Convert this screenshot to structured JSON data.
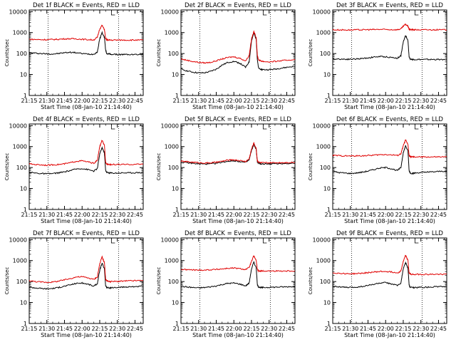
{
  "colors": {
    "events": "#000000",
    "lld": "#e00000",
    "axis": "#000000",
    "background": "#ffffff"
  },
  "chart_data": [
    {
      "type": "line",
      "title": "Det 1f BLACK = Events, RED = LLD",
      "xlabel": "Start Time (08-Jan-10 21:14:40)",
      "ylabel": "Counts/sec",
      "x_ticks": [
        "21:15",
        "21:30",
        "21:45",
        "22:00",
        "22:15",
        "22:30",
        "22:45"
      ],
      "y_ticks": [
        "1",
        "10",
        "100",
        "1000",
        "10000"
      ],
      "yscale": "log",
      "ylim": [
        1,
        12000
      ],
      "xlim": [
        "21:15",
        "22:52"
      ],
      "dotted_vlines": [
        "21:31",
        "22:31"
      ],
      "x": [
        "21:15",
        "21:20",
        "21:25",
        "21:30",
        "21:35",
        "21:40",
        "21:45",
        "21:50",
        "21:55",
        "22:00",
        "22:05",
        "22:10",
        "22:13",
        "22:15",
        "22:17",
        "22:19",
        "22:20",
        "22:21",
        "22:23",
        "22:25",
        "22:30",
        "22:35",
        "22:40",
        "22:45",
        "22:52"
      ],
      "series": [
        {
          "name": "Events",
          "values": [
            110,
            105,
            100,
            97,
            95,
            100,
            110,
            115,
            110,
            100,
            95,
            93,
            120,
            500,
            1000,
            600,
            150,
            100,
            95,
            92,
            90,
            90,
            90,
            90,
            90
          ]
        },
        {
          "name": "LLD",
          "values": [
            480,
            470,
            460,
            460,
            470,
            480,
            500,
            510,
            500,
            480,
            460,
            450,
            600,
            1500,
            2200,
            1400,
            520,
            450,
            440,
            440,
            440,
            440,
            440,
            440,
            440
          ]
        }
      ]
    },
    {
      "type": "line",
      "title": "Det 2f BLACK = Events, RED = LLD",
      "xlabel": "Start Time (08-Jan-10 21:14:40)",
      "ylabel": "Counts/sec",
      "x_ticks": [
        "21:15",
        "21:30",
        "21:45",
        "22:00",
        "22:15",
        "22:30",
        "22:45"
      ],
      "y_ticks": [
        "1",
        "10",
        "100",
        "1000",
        "10000"
      ],
      "yscale": "log",
      "ylim": [
        1,
        12000
      ],
      "xlim": [
        "21:15",
        "22:52"
      ],
      "dotted_vlines": [
        "21:31",
        "22:31"
      ],
      "x": [
        "21:15",
        "21:20",
        "21:25",
        "21:30",
        "21:35",
        "21:40",
        "21:45",
        "21:50",
        "21:55",
        "22:00",
        "22:05",
        "22:10",
        "22:13",
        "22:15",
        "22:17",
        "22:19",
        "22:20",
        "22:21",
        "22:23",
        "22:25",
        "22:30",
        "22:35",
        "22:40",
        "22:45",
        "22:52"
      ],
      "series": [
        {
          "name": "Events",
          "values": [
            18,
            15,
            13,
            12,
            12,
            14,
            18,
            28,
            38,
            42,
            35,
            22,
            40,
            400,
            950,
            500,
            50,
            20,
            18,
            17,
            17,
            18,
            20,
            22,
            25
          ]
        },
        {
          "name": "LLD",
          "values": [
            55,
            48,
            42,
            38,
            36,
            38,
            45,
            55,
            65,
            70,
            60,
            45,
            80,
            500,
            1100,
            600,
            80,
            50,
            45,
            42,
            40,
            42,
            45,
            48,
            52
          ]
        }
      ]
    },
    {
      "type": "line",
      "title": "Det 3f BLACK = Events, RED = LLD",
      "xlabel": "Start Time (08-Jan-10 21:14:40)",
      "ylabel": "Counts/sec",
      "x_ticks": [
        "21:15",
        "21:30",
        "21:45",
        "22:00",
        "22:15",
        "22:30",
        "22:45"
      ],
      "y_ticks": [
        "1",
        "10",
        "100",
        "1000",
        "10000"
      ],
      "yscale": "log",
      "ylim": [
        1,
        12000
      ],
      "xlim": [
        "21:15",
        "22:52"
      ],
      "dotted_vlines": [
        "21:31",
        "22:31"
      ],
      "x": [
        "21:15",
        "21:20",
        "21:25",
        "21:30",
        "21:35",
        "21:40",
        "21:45",
        "21:50",
        "21:55",
        "22:00",
        "22:05",
        "22:10",
        "22:13",
        "22:15",
        "22:17",
        "22:19",
        "22:20",
        "22:21",
        "22:23",
        "22:25",
        "22:30",
        "22:35",
        "22:40",
        "22:45",
        "22:52"
      ],
      "series": [
        {
          "name": "Events",
          "values": [
            55,
            55,
            54,
            54,
            55,
            58,
            62,
            68,
            72,
            70,
            65,
            60,
            80,
            350,
            750,
            400,
            70,
            55,
            52,
            52,
            52,
            52,
            52,
            52,
            52
          ]
        },
        {
          "name": "LLD",
          "values": [
            1350,
            1350,
            1340,
            1340,
            1350,
            1360,
            1380,
            1400,
            1420,
            1400,
            1380,
            1370,
            1500,
            2000,
            2500,
            2000,
            1450,
            1380,
            1370,
            1360,
            1360,
            1360,
            1360,
            1360,
            1360
          ]
        }
      ]
    },
    {
      "type": "line",
      "title": "Det 4f BLACK = Events, RED = LLD",
      "xlabel": "Start Time (08-Jan-10 21:14:40)",
      "ylabel": "Counts/sec",
      "x_ticks": [
        "21:15",
        "21:30",
        "21:45",
        "22:00",
        "22:15",
        "22:30",
        "22:45"
      ],
      "y_ticks": [
        "1",
        "10",
        "100",
        "1000",
        "10000"
      ],
      "yscale": "log",
      "ylim": [
        1,
        12000
      ],
      "xlim": [
        "21:15",
        "22:52"
      ],
      "dotted_vlines": [
        "21:31",
        "22:31"
      ],
      "x": [
        "21:15",
        "21:20",
        "21:25",
        "21:30",
        "21:35",
        "21:40",
        "21:45",
        "21:50",
        "21:55",
        "22:00",
        "22:05",
        "22:10",
        "22:13",
        "22:15",
        "22:17",
        "22:19",
        "22:20",
        "22:21",
        "22:23",
        "22:25",
        "22:30",
        "22:35",
        "22:40",
        "22:45",
        "22:52"
      ],
      "series": [
        {
          "name": "Events",
          "values": [
            60,
            55,
            52,
            50,
            52,
            56,
            62,
            72,
            85,
            90,
            80,
            68,
            90,
            450,
            900,
            500,
            75,
            60,
            55,
            55,
            55,
            56,
            56,
            57,
            58
          ]
        },
        {
          "name": "LLD",
          "values": [
            150,
            140,
            135,
            130,
            135,
            140,
            150,
            170,
            200,
            210,
            185,
            160,
            220,
            1000,
            2000,
            1100,
            180,
            150,
            140,
            140,
            140,
            140,
            140,
            142,
            145
          ]
        }
      ]
    },
    {
      "type": "line",
      "title": "Det 5f BLACK = Events, RED = LLD",
      "xlabel": "Start Time (08-Jan-10 21:14:40)",
      "ylabel": "Counts/sec",
      "x_ticks": [
        "21:15",
        "21:30",
        "21:45",
        "22:00",
        "22:15",
        "22:30",
        "22:45"
      ],
      "y_ticks": [
        "1",
        "10",
        "100",
        "1000",
        "10000"
      ],
      "yscale": "log",
      "ylim": [
        1,
        12000
      ],
      "xlim": [
        "21:15",
        "22:52"
      ],
      "dotted_vlines": [
        "21:31",
        "22:31"
      ],
      "x": [
        "21:15",
        "21:20",
        "21:25",
        "21:30",
        "21:35",
        "21:40",
        "21:45",
        "21:50",
        "21:55",
        "22:00",
        "22:05",
        "22:10",
        "22:13",
        "22:15",
        "22:17",
        "22:19",
        "22:20",
        "22:21",
        "22:23",
        "22:25",
        "22:30",
        "22:35",
        "22:40",
        "22:45",
        "22:52"
      ],
      "series": [
        {
          "name": "Events",
          "values": [
            180,
            170,
            160,
            150,
            148,
            150,
            160,
            180,
            200,
            210,
            195,
            175,
            230,
            650,
            1300,
            700,
            190,
            160,
            150,
            150,
            150,
            152,
            155,
            158,
            160
          ]
        },
        {
          "name": "LLD",
          "values": [
            200,
            190,
            180,
            170,
            165,
            168,
            178,
            200,
            225,
            235,
            215,
            195,
            260,
            750,
            1500,
            800,
            210,
            180,
            170,
            168,
            168,
            170,
            172,
            175,
            178
          ]
        }
      ]
    },
    {
      "type": "line",
      "title": "Det 6f BLACK = Events, RED = LLD",
      "xlabel": "Start Time (08-Jan-10 21:14:40)",
      "ylabel": "Counts/sec",
      "x_ticks": [
        "21:15",
        "21:30",
        "21:45",
        "22:00",
        "22:15",
        "22:30",
        "22:45"
      ],
      "y_ticks": [
        "1",
        "10",
        "100",
        "1000",
        "10000"
      ],
      "yscale": "log",
      "ylim": [
        1,
        12000
      ],
      "xlim": [
        "21:15",
        "22:52"
      ],
      "dotted_vlines": [
        "21:31",
        "22:31"
      ],
      "x": [
        "21:15",
        "21:20",
        "21:25",
        "21:30",
        "21:35",
        "21:40",
        "21:45",
        "21:50",
        "21:55",
        "22:00",
        "22:05",
        "22:10",
        "22:13",
        "22:15",
        "22:17",
        "22:19",
        "22:20",
        "22:21",
        "22:23",
        "22:25",
        "22:30",
        "22:35",
        "22:40",
        "22:45",
        "22:52"
      ],
      "series": [
        {
          "name": "Events",
          "values": [
            65,
            58,
            55,
            52,
            55,
            60,
            68,
            80,
            95,
            100,
            88,
            72,
            100,
            500,
            1100,
            600,
            70,
            55,
            52,
            55,
            58,
            60,
            62,
            65,
            68
          ]
        },
        {
          "name": "LLD",
          "values": [
            380,
            370,
            360,
            355,
            360,
            365,
            375,
            390,
            410,
            420,
            400,
            380,
            450,
            1100,
            2100,
            1200,
            380,
            330,
            320,
            320,
            320,
            320,
            320,
            320,
            320
          ]
        }
      ]
    },
    {
      "type": "line",
      "title": "Det 7f BLACK = Events, RED = LLD",
      "xlabel": "Start Time (08-Jan-10 21:14:40)",
      "ylabel": "Counts/sec",
      "x_ticks": [
        "21:15",
        "21:30",
        "21:45",
        "22:00",
        "22:15",
        "22:30",
        "22:45"
      ],
      "y_ticks": [
        "1",
        "10",
        "100",
        "1000",
        "10000"
      ],
      "yscale": "log",
      "ylim": [
        1,
        12000
      ],
      "xlim": [
        "21:15",
        "22:52"
      ],
      "dotted_vlines": [
        "21:31",
        "22:31"
      ],
      "x": [
        "21:15",
        "21:20",
        "21:25",
        "21:30",
        "21:35",
        "21:40",
        "21:45",
        "21:50",
        "21:55",
        "22:00",
        "22:05",
        "22:10",
        "22:13",
        "22:15",
        "22:17",
        "22:19",
        "22:20",
        "22:21",
        "22:23",
        "22:25",
        "22:30",
        "22:35",
        "22:40",
        "22:45",
        "22:52"
      ],
      "series": [
        {
          "name": "Events",
          "values": [
            55,
            50,
            47,
            45,
            47,
            52,
            60,
            70,
            82,
            85,
            75,
            60,
            80,
            350,
            750,
            400,
            65,
            52,
            50,
            50,
            52,
            54,
            56,
            58,
            60
          ]
        },
        {
          "name": "LLD",
          "values": [
            110,
            100,
            95,
            92,
            95,
            105,
            120,
            140,
            165,
            170,
            150,
            125,
            170,
            700,
            1500,
            800,
            130,
            110,
            100,
            100,
            102,
            105,
            108,
            110,
            112
          ]
        }
      ]
    },
    {
      "type": "line",
      "title": "Det 8f BLACK = Events, RED = LLD",
      "xlabel": "Start Time (08-Jan-10 21:14:40)",
      "ylabel": "Counts/sec",
      "x_ticks": [
        "21:15",
        "21:30",
        "21:45",
        "22:00",
        "22:15",
        "22:30",
        "22:45"
      ],
      "y_ticks": [
        "1",
        "10",
        "100",
        "1000",
        "10000"
      ],
      "yscale": "log",
      "ylim": [
        1,
        12000
      ],
      "xlim": [
        "21:15",
        "22:52"
      ],
      "dotted_vlines": [
        "21:31",
        "22:31"
      ],
      "x": [
        "21:15",
        "21:20",
        "21:25",
        "21:30",
        "21:35",
        "21:40",
        "21:45",
        "21:50",
        "21:55",
        "22:00",
        "22:05",
        "22:10",
        "22:13",
        "22:15",
        "22:17",
        "22:19",
        "22:20",
        "22:21",
        "22:23",
        "22:25",
        "22:30",
        "22:35",
        "22:40",
        "22:45",
        "22:52"
      ],
      "series": [
        {
          "name": "Events",
          "values": [
            60,
            55,
            52,
            50,
            52,
            56,
            62,
            72,
            82,
            85,
            76,
            62,
            85,
            400,
            850,
            450,
            70,
            55,
            52,
            52,
            53,
            54,
            55,
            56,
            58
          ]
        },
        {
          "name": "LLD",
          "values": [
            380,
            370,
            360,
            350,
            355,
            365,
            380,
            400,
            430,
            440,
            410,
            380,
            460,
            900,
            1700,
            1000,
            380,
            330,
            320,
            320,
            320,
            320,
            320,
            322,
            325
          ]
        }
      ]
    },
    {
      "type": "line",
      "title": "Det 9f BLACK = Events, RED = LLD",
      "xlabel": "Start Time (08-Jan-10 21:14:40)",
      "ylabel": "Counts/sec",
      "x_ticks": [
        "21:15",
        "21:30",
        "21:45",
        "22:00",
        "22:15",
        "22:30",
        "22:45"
      ],
      "y_ticks": [
        "1",
        "10",
        "100",
        "1000",
        "10000"
      ],
      "yscale": "log",
      "ylim": [
        1,
        12000
      ],
      "xlim": [
        "21:15",
        "22:52"
      ],
      "dotted_vlines": [
        "21:31",
        "22:31"
      ],
      "x": [
        "21:15",
        "21:20",
        "21:25",
        "21:30",
        "21:35",
        "21:40",
        "21:45",
        "21:50",
        "21:55",
        "22:00",
        "22:05",
        "22:10",
        "22:13",
        "22:15",
        "22:17",
        "22:19",
        "22:20",
        "22:21",
        "22:23",
        "22:25",
        "22:30",
        "22:35",
        "22:40",
        "22:45",
        "22:52"
      ],
      "series": [
        {
          "name": "Events",
          "values": [
            60,
            56,
            53,
            52,
            54,
            58,
            65,
            74,
            85,
            88,
            78,
            64,
            85,
            400,
            800,
            430,
            68,
            54,
            52,
            52,
            53,
            54,
            56,
            57,
            58
          ]
        },
        {
          "name": "LLD",
          "values": [
            260,
            250,
            240,
            235,
            240,
            250,
            265,
            285,
            300,
            305,
            285,
            260,
            320,
            900,
            1800,
            1000,
            260,
            225,
            220,
            220,
            220,
            220,
            220,
            222,
            225
          ]
        }
      ]
    }
  ]
}
